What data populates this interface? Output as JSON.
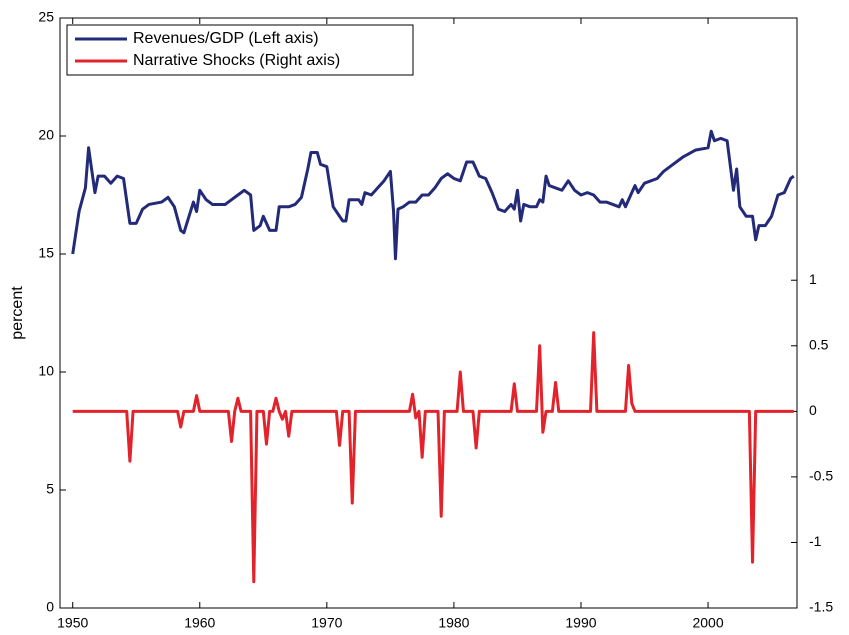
{
  "chart_data": {
    "type": "line",
    "ylabel": "percent",
    "xlim": [
      1949,
      2007
    ],
    "xticks": [
      1950,
      1960,
      1970,
      1980,
      1990,
      2000
    ],
    "ylim": [
      0,
      25
    ],
    "yticks": [
      0,
      5,
      10,
      15,
      20,
      25
    ],
    "y2lim": [
      -1.5,
      3
    ],
    "y2ticks": [
      -1.5,
      -1,
      -0.5,
      0,
      0.5,
      1
    ],
    "legend": "upper left",
    "series": [
      {
        "name": "Revenues/GDP (Left axis)",
        "color": "#232a78",
        "axis": "y",
        "x": [
          1950,
          1950.5,
          1951,
          1951.25,
          1951.75,
          1952,
          1952.5,
          1953,
          1953.5,
          1954,
          1954.5,
          1955,
          1955.5,
          1956,
          1957,
          1957.5,
          1958,
          1958.5,
          1958.75,
          1959.5,
          1959.75,
          1960,
          1960.5,
          1961,
          1962,
          1962.5,
          1963,
          1963.5,
          1964,
          1964.25,
          1964.75,
          1965,
          1965.5,
          1966,
          1966.25,
          1967,
          1967.5,
          1968,
          1968.5,
          1968.75,
          1969.25,
          1969.5,
          1970,
          1970.5,
          1971,
          1971.25,
          1971.5,
          1971.75,
          1972.5,
          1972.75,
          1973,
          1973.5,
          1974,
          1974.5,
          1975,
          1975.25,
          1975.4,
          1975.6,
          1976,
          1976.5,
          1977,
          1977.5,
          1978,
          1978.5,
          1979,
          1979.5,
          1980,
          1980.5,
          1981,
          1981.5,
          1982,
          1982.5,
          1983,
          1983.5,
          1984,
          1984.5,
          1984.75,
          1985,
          1985.25,
          1985.5,
          1986,
          1986.5,
          1986.75,
          1987,
          1987.25,
          1987.5,
          1988,
          1988.5,
          1989,
          1989.5,
          1990,
          1990.5,
          1991,
          1991.5,
          1992,
          1992.5,
          1993,
          1993.25,
          1993.5,
          1994,
          1994.25,
          1994.5,
          1995,
          1996,
          1996.5,
          1997,
          1998,
          1999,
          2000,
          2000.25,
          2000.5,
          2001,
          2001.5,
          2002,
          2002.25,
          2002.5,
          2003,
          2003.5,
          2003.75,
          2004,
          2004.5,
          2005,
          2005.5,
          2006,
          2006.5,
          2006.75
        ],
        "values": [
          15.0,
          16.8,
          17.8,
          19.5,
          17.6,
          18.3,
          18.3,
          18.0,
          18.3,
          18.2,
          16.3,
          16.3,
          16.9,
          17.1,
          17.2,
          17.4,
          17.0,
          16.0,
          15.9,
          17.2,
          16.8,
          17.7,
          17.3,
          17.1,
          17.1,
          17.3,
          17.5,
          17.7,
          17.5,
          16.0,
          16.2,
          16.6,
          16.0,
          16.0,
          17.0,
          17.0,
          17.1,
          17.4,
          18.6,
          19.3,
          19.3,
          18.8,
          18.7,
          17.0,
          16.6,
          16.4,
          16.4,
          17.3,
          17.3,
          17.1,
          17.6,
          17.5,
          17.8,
          18.1,
          18.5,
          16.8,
          14.8,
          16.9,
          17.0,
          17.2,
          17.2,
          17.5,
          17.5,
          17.8,
          18.2,
          18.4,
          18.2,
          18.1,
          18.9,
          18.9,
          18.3,
          18.2,
          17.6,
          16.9,
          16.8,
          17.1,
          16.9,
          17.7,
          16.4,
          17.1,
          17.0,
          17.0,
          17.3,
          17.2,
          18.3,
          17.9,
          17.8,
          17.7,
          18.1,
          17.7,
          17.5,
          17.6,
          17.5,
          17.2,
          17.2,
          17.1,
          17.0,
          17.3,
          17.0,
          17.6,
          17.9,
          17.6,
          18.0,
          18.2,
          18.5,
          18.7,
          19.1,
          19.4,
          19.5,
          20.2,
          19.8,
          19.9,
          19.8,
          17.7,
          18.6,
          17.0,
          16.6,
          16.6,
          15.6,
          16.2,
          16.2,
          16.6,
          17.5,
          17.6,
          18.2,
          18.3
        ]
      },
      {
        "name": "Narrative Shocks (Right axis)",
        "color": "#e3232b",
        "axis": "y2",
        "x": [
          1950,
          1954.25,
          1954.5,
          1954.75,
          1958.25,
          1958.5,
          1958.75,
          1959.5,
          1959.75,
          1960,
          1962.25,
          1962.5,
          1962.75,
          1963,
          1963.25,
          1964,
          1964.25,
          1964.5,
          1965,
          1965.25,
          1965.5,
          1965.75,
          1966,
          1966.25,
          1966.5,
          1966.75,
          1967,
          1967.25,
          1970.75,
          1971,
          1971.25,
          1971.75,
          1972,
          1972.25,
          1976.5,
          1976.75,
          1977,
          1977.25,
          1977.5,
          1977.75,
          1978.75,
          1979,
          1979.25,
          1980.25,
          1980.5,
          1980.75,
          1981.5,
          1981.75,
          1982,
          1984.5,
          1984.75,
          1985,
          1986.5,
          1986.75,
          1987,
          1987.25,
          1987.75,
          1988,
          1988.25,
          1990.75,
          1991,
          1991.25,
          1993.5,
          1993.75,
          1994,
          1994.25,
          2003.25,
          2003.5,
          2003.75,
          2006.75
        ],
        "values": [
          0,
          0,
          -0.38,
          0,
          0,
          -0.12,
          0,
          0,
          0.12,
          0,
          0,
          -0.23,
          0,
          0.1,
          0,
          0,
          -1.3,
          0,
          0,
          -0.25,
          0,
          0,
          0.1,
          0,
          -0.06,
          0,
          -0.19,
          0,
          0,
          -0.26,
          0,
          0,
          -0.7,
          0,
          0,
          0.13,
          -0.05,
          0,
          -0.35,
          0,
          0,
          -0.8,
          0,
          0,
          0.3,
          0,
          0,
          -0.28,
          0,
          0,
          0.21,
          0,
          0,
          0.5,
          -0.16,
          0,
          0,
          0.22,
          0,
          0,
          0.6,
          0,
          0,
          0.35,
          0.06,
          0,
          0,
          -1.15,
          0,
          0
        ]
      }
    ]
  }
}
